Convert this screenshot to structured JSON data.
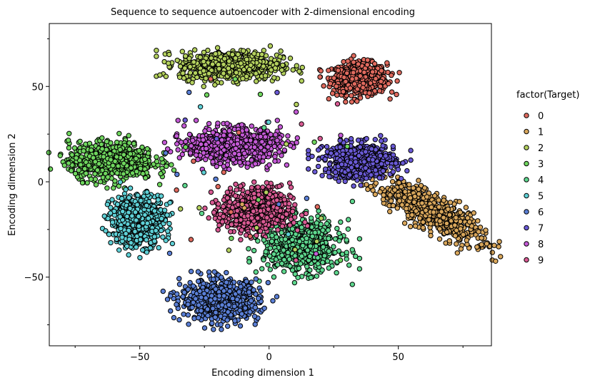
{
  "chart_data": {
    "type": "scatter",
    "title": "Sequence to sequence autoencoder with 2-dimensional encoding",
    "xlabel": "Encoding dimension 1",
    "ylabel": "Encoding dimension 2",
    "xlim": [
      -85,
      86
    ],
    "ylim": [
      -86,
      83
    ],
    "xticks": [
      -50,
      0,
      50
    ],
    "xtick_labels": [
      "−50",
      "0",
      "50"
    ],
    "yticks": [
      -50,
      0,
      50
    ],
    "ytick_labels": [
      "−50",
      "0",
      "50"
    ],
    "x_minor_ticks": [
      -75,
      -25,
      25,
      75
    ],
    "y_minor_ticks": [
      -75,
      -25,
      25,
      75
    ],
    "grid": false,
    "legend": {
      "title": "factor(Target)",
      "position": "right"
    },
    "marker_edge_color": "#000000",
    "series": [
      {
        "name": "0",
        "color": "#e06a5e",
        "cluster": {
          "center": [
            35,
            54
          ],
          "spread": [
            7,
            5.5
          ],
          "count": 700
        }
      },
      {
        "name": "1",
        "color": "#d9a75c",
        "cluster": {
          "center": [
            63,
            -16
          ],
          "spread": [
            5,
            16
          ],
          "tilt": 0.9,
          "count": 700
        }
      },
      {
        "name": "2",
        "color": "#b4d15e",
        "cluster": {
          "center": [
            -15,
            61
          ],
          "spread": [
            13,
            5
          ],
          "count": 700
        }
      },
      {
        "name": "3",
        "color": "#6fd65e",
        "cluster": {
          "center": [
            -61,
            11
          ],
          "spread": [
            11,
            6.5
          ],
          "count": 700
        }
      },
      {
        "name": "4",
        "color": "#5ed88e",
        "cluster": {
          "center": [
            13,
            -34
          ],
          "spread": [
            10,
            9
          ],
          "count": 650
        }
      },
      {
        "name": "5",
        "color": "#5ed0d6",
        "cluster": {
          "center": [
            -51,
            -20
          ],
          "spread": [
            7,
            9
          ],
          "count": 650
        }
      },
      {
        "name": "6",
        "color": "#5a7fd6",
        "cluster": {
          "center": [
            -19,
            -62
          ],
          "spread": [
            10,
            7
          ],
          "count": 700
        }
      },
      {
        "name": "7",
        "color": "#6a5ad6",
        "cluster": {
          "center": [
            35,
            11
          ],
          "spread": [
            9,
            6
          ],
          "count": 700
        }
      },
      {
        "name": "8",
        "color": "#c45ad6",
        "cluster": {
          "center": [
            -14,
            19
          ],
          "spread": [
            12,
            6
          ],
          "count": 700
        }
      },
      {
        "name": "9",
        "color": "#d95a93",
        "cluster": {
          "center": [
            -5,
            -15
          ],
          "spread": [
            9,
            8
          ],
          "count": 650
        }
      }
    ]
  }
}
